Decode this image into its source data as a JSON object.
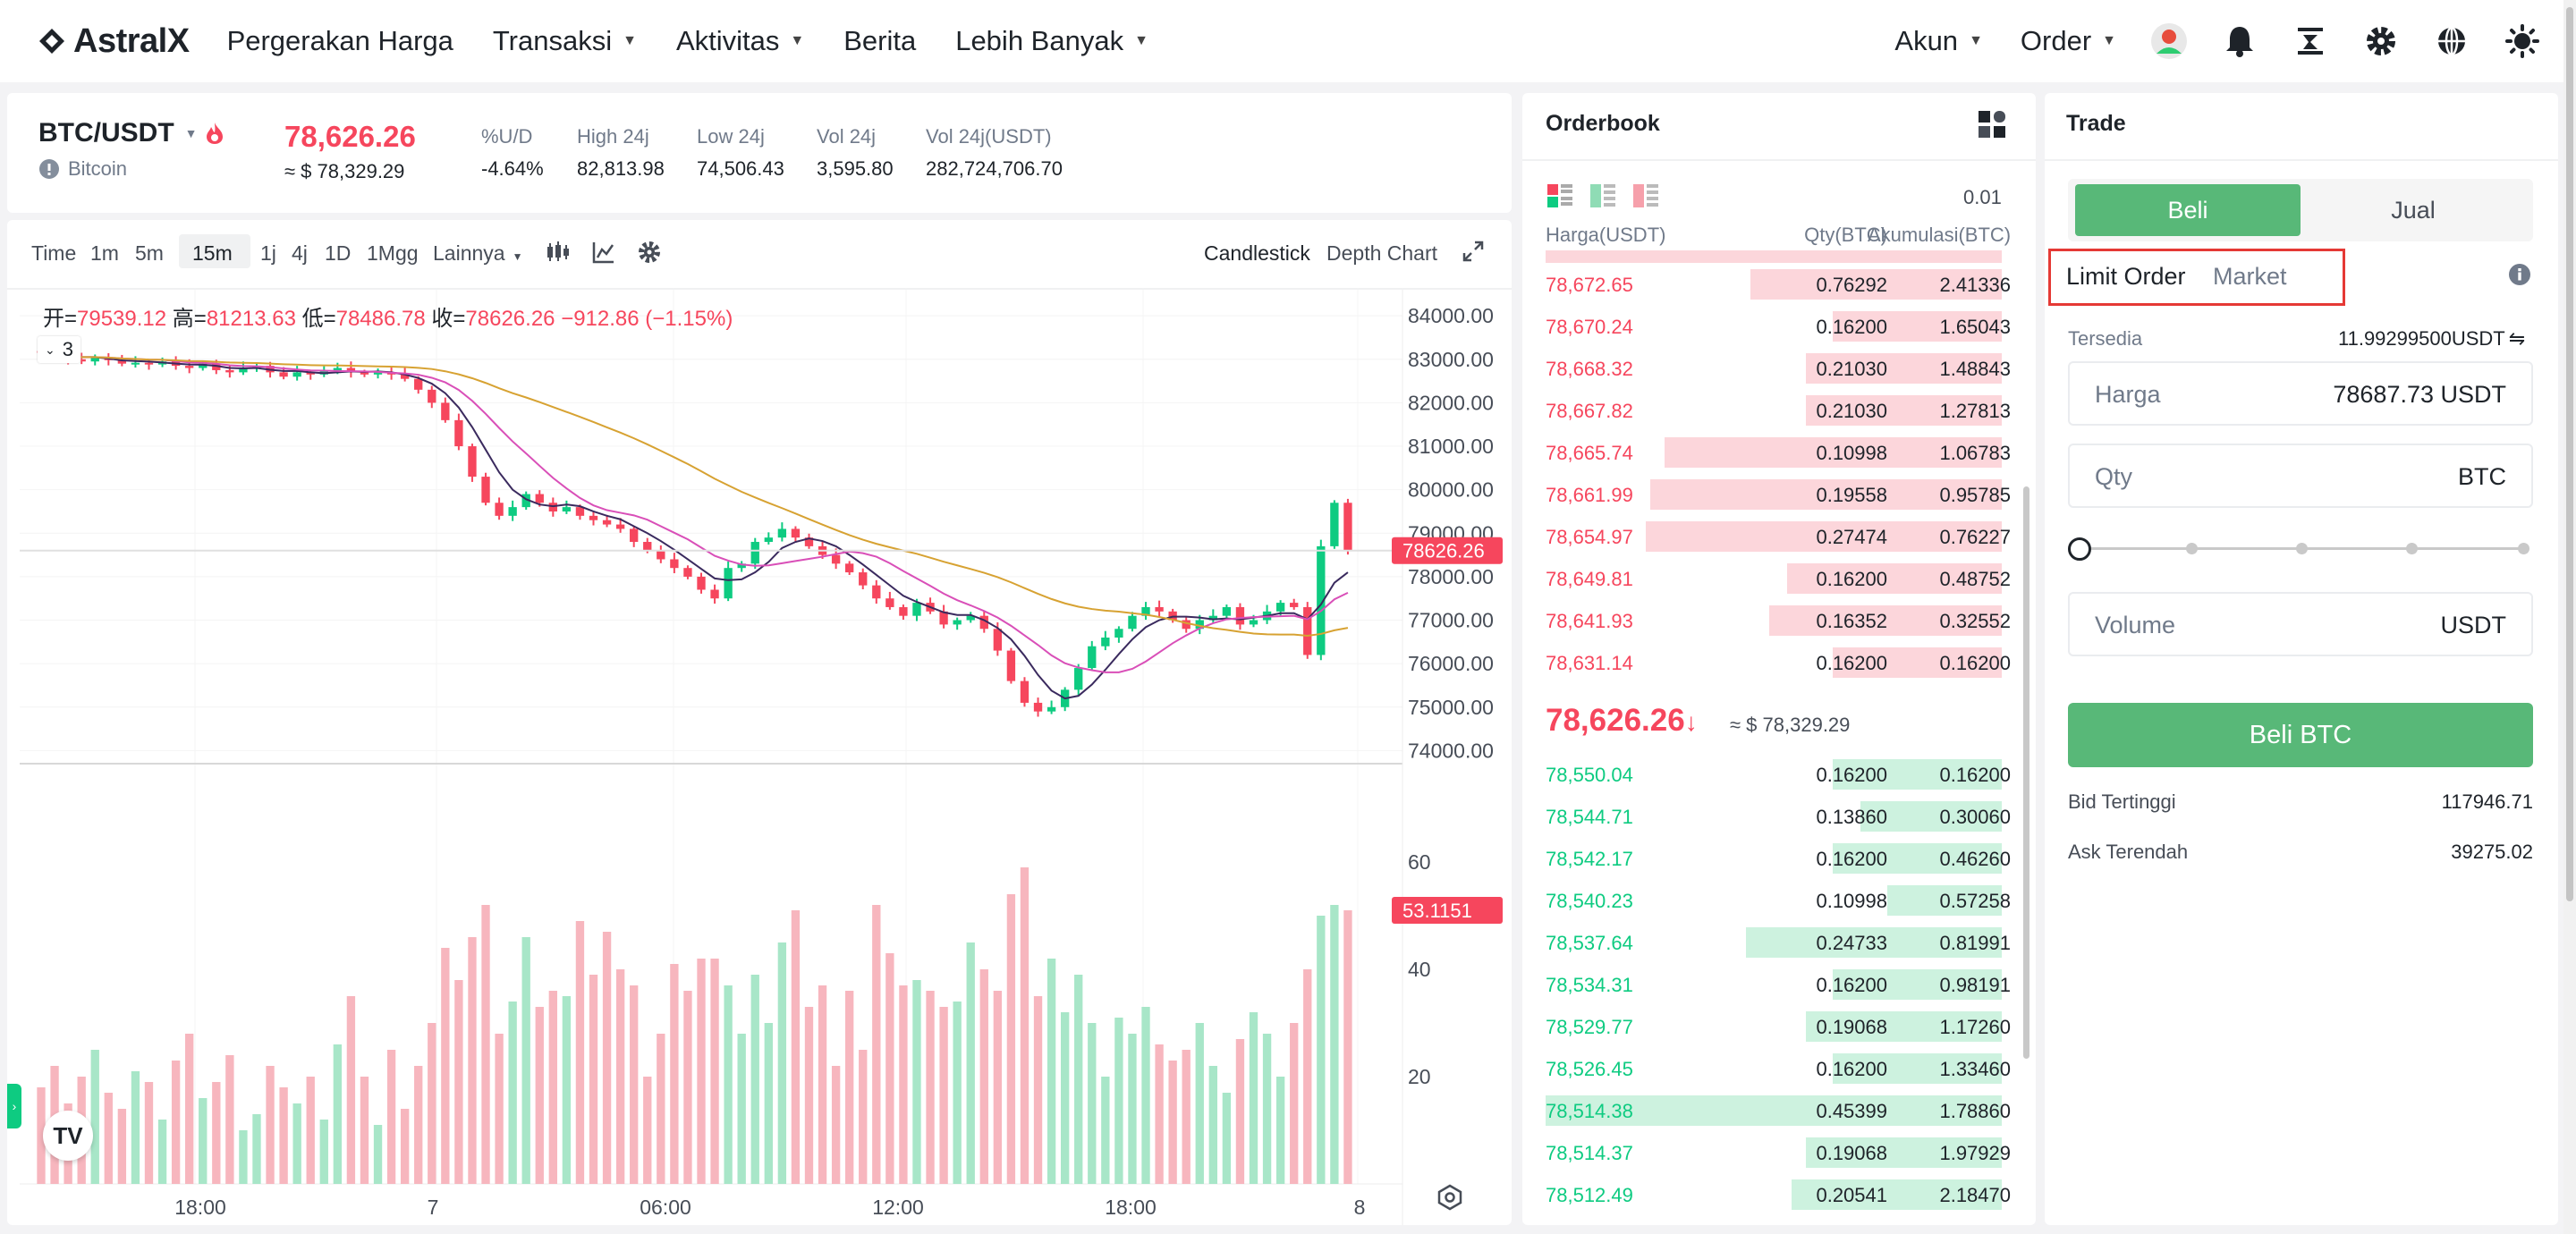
{
  "nav": {
    "logo": "AstralX",
    "items": [
      "Pergerakan Harga",
      "Transaksi",
      "Aktivitas",
      "Berita",
      "Lebih Banyak"
    ],
    "account": "Akun",
    "order": "Order"
  },
  "ticker": {
    "pair": "BTC/USDT",
    "name": "Bitcoin",
    "price": "78,626.26",
    "price_usd": "≈ $ 78,329.29",
    "stats": [
      {
        "label": "%U/D",
        "value": "-4.64%"
      },
      {
        "label": "High 24j",
        "value": "82,813.98"
      },
      {
        "label": "Low 24j",
        "value": "74,506.43"
      },
      {
        "label": "Vol 24j",
        "value": "3,595.80"
      },
      {
        "label": "Vol 24j(USDT)",
        "value": "282,724,706.70"
      }
    ]
  },
  "toolbar": {
    "intervals": [
      "Time",
      "1m",
      "5m",
      "15m",
      "1j",
      "4j",
      "1D",
      "1Mgg"
    ],
    "more": "Lainnya",
    "active": "15m",
    "candlestick": "Candlestick",
    "depth": "Depth Chart"
  },
  "chart": {
    "ohlc": {
      "o_label": "开=",
      "o": "79539.12",
      "h_label": "高=",
      "h": "81213.63",
      "l_label": "低=",
      "l": "78486.78",
      "c_label": "收=",
      "c": "78626.26",
      "change": "−912.86 (−1.15%)"
    },
    "indicator_count": "3",
    "price_tag": "78626.26",
    "vol_tag": "53.1151",
    "y_ticks": [
      "84000.00",
      "83000.00",
      "82000.00",
      "81000.00",
      "80000.00",
      "79000.00",
      "78000.00",
      "77000.00",
      "76000.00",
      "75000.00",
      "74000.00"
    ],
    "vol_ticks": [
      "60",
      "40",
      "20"
    ],
    "x_ticks": [
      "18:00",
      "7",
      "06:00",
      "12:00",
      "18:00",
      "8"
    ],
    "logo": "TV"
  },
  "chart_data": {
    "type": "candlestick",
    "title": "",
    "ylim": [
      73700,
      84600
    ],
    "vol_ylim": [
      0,
      75
    ],
    "close": [
      83150,
      83100,
      83000,
      82950,
      83050,
      82980,
      82900,
      82920,
      82880,
      82950,
      82850,
      82800,
      82900,
      82750,
      82700,
      82800,
      82850,
      82700,
      82600,
      82700,
      82650,
      82750,
      82800,
      82700,
      82650,
      82700,
      82650,
      82550,
      82300,
      82000,
      81600,
      81000,
      80300,
      79700,
      79400,
      79600,
      79900,
      79700,
      79500,
      79600,
      79400,
      79300,
      79200,
      79100,
      78800,
      78600,
      78400,
      78200,
      78000,
      77700,
      77500,
      78200,
      78300,
      78800,
      78900,
      79100,
      78900,
      78700,
      78500,
      78300,
      78100,
      77800,
      77500,
      77300,
      77100,
      77400,
      77200,
      76900,
      77000,
      77100,
      76800,
      76300,
      75600,
      75100,
      74900,
      75000,
      75400,
      75900,
      76400,
      76600,
      76800,
      77100,
      77300,
      77200,
      77000,
      76800,
      77000,
      77100,
      77300,
      76900,
      77000,
      77200,
      77400,
      77300,
      76200,
      78700,
      79700,
      78600
    ],
    "volume": [
      18,
      22,
      15,
      20,
      25,
      17,
      14,
      21,
      19,
      12,
      23,
      28,
      16,
      19,
      24,
      10,
      13,
      22,
      18,
      15,
      20,
      12,
      26,
      35,
      20,
      11,
      25,
      14,
      22,
      30,
      44,
      38,
      46,
      52,
      28,
      34,
      46,
      33,
      36,
      35,
      49,
      39,
      47,
      40,
      37,
      20,
      28,
      41,
      36,
      42,
      42,
      37,
      28,
      39,
      30,
      45,
      51,
      33,
      37,
      22,
      36,
      25,
      52,
      43,
      37,
      38,
      36,
      33,
      34,
      45,
      40,
      36,
      54,
      59,
      35,
      42,
      32,
      39,
      30,
      20,
      31,
      28,
      33,
      26,
      23,
      25,
      30,
      22,
      17,
      27,
      32,
      28,
      20,
      30,
      40,
      50,
      52,
      51
    ]
  },
  "orderbook": {
    "title": "Orderbook",
    "precision": "0.01",
    "headers": [
      "Harga(USDT)",
      "Qty(BTC)",
      "Akumulasi(BTC)"
    ],
    "asks": [
      [
        "78,672.65",
        "0.76292",
        "2.41336"
      ],
      [
        "78,670.24",
        "0.16200",
        "1.65043"
      ],
      [
        "78,668.32",
        "0.21030",
        "1.48843"
      ],
      [
        "78,667.82",
        "0.21030",
        "1.27813"
      ],
      [
        "78,665.74",
        "0.10998",
        "1.06783"
      ],
      [
        "78,661.99",
        "0.19558",
        "0.95785"
      ],
      [
        "78,654.97",
        "0.27474",
        "0.76227"
      ],
      [
        "78,649.81",
        "0.16200",
        "0.48752"
      ],
      [
        "78,641.93",
        "0.16352",
        "0.32552"
      ],
      [
        "78,631.14",
        "0.16200",
        "0.16200"
      ]
    ],
    "ask_fill": [
      0.55,
      0.37,
      0.43,
      0.43,
      0.74,
      0.77,
      0.78,
      0.47,
      0.51,
      0.37
    ],
    "mid_price": "78,626.26",
    "mid_arrow": "↓",
    "mid_usd": "≈ $ 78,329.29",
    "bids": [
      [
        "78,550.04",
        "0.16200",
        "0.16200"
      ],
      [
        "78,544.71",
        "0.13860",
        "0.30060"
      ],
      [
        "78,542.17",
        "0.16200",
        "0.46260"
      ],
      [
        "78,540.23",
        "0.10998",
        "0.57258"
      ],
      [
        "78,537.64",
        "0.24733",
        "0.81991"
      ],
      [
        "78,534.31",
        "0.16200",
        "0.98191"
      ],
      [
        "78,529.77",
        "0.19068",
        "1.17260"
      ],
      [
        "78,526.45",
        "0.16200",
        "1.33460"
      ],
      [
        "78,514.38",
        "0.45399",
        "1.78860"
      ],
      [
        "78,514.37",
        "0.19068",
        "1.97929"
      ],
      [
        "78,512.49",
        "0.20541",
        "2.18470"
      ]
    ],
    "bid_fill": [
      0.37,
      0.31,
      0.37,
      0.25,
      0.56,
      0.37,
      0.43,
      0.37,
      1.0,
      0.43,
      0.46
    ]
  },
  "trade": {
    "title": "Trade",
    "buy": "Beli",
    "sell": "Jual",
    "limit": "Limit Order",
    "market": "Market",
    "avail_label": "Tersedia",
    "avail_value": "11.99299500USDT",
    "price_label": "Harga",
    "price_value": "78687.73 USDT",
    "qty_label": "Qty",
    "qty_unit": "BTC",
    "vol_label": "Volume",
    "vol_unit": "USDT",
    "submit": "Beli BTC",
    "bid_label": "Bid Tertinggi",
    "bid_value": "117946.71",
    "ask_label": "Ask Terendah",
    "ask_value": "39275.02"
  },
  "colors": {
    "up": "#0ecb81",
    "down": "#f6465d",
    "buy_button": "#58b878",
    "highlight": "#e53935"
  }
}
